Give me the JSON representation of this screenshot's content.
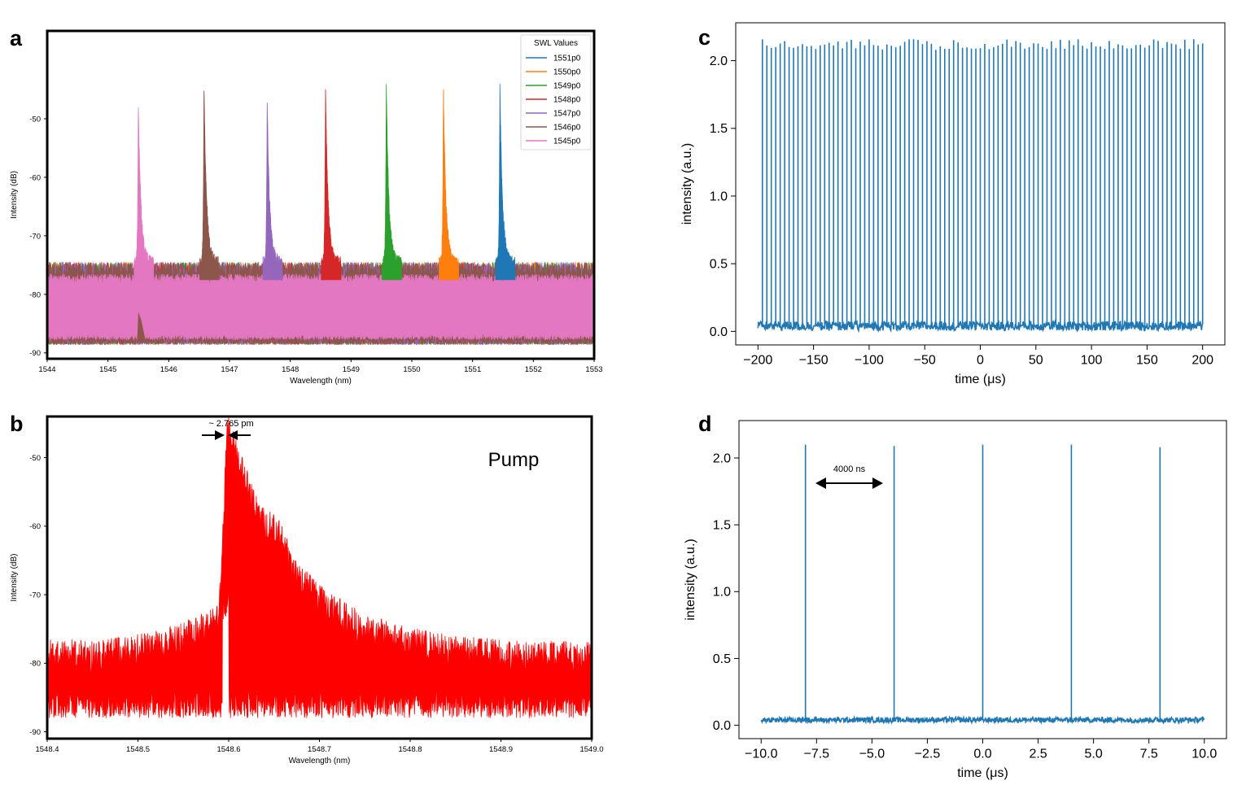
{
  "chart_data": [
    {
      "panel": "a",
      "type": "line",
      "title": "",
      "xlabel": "Wavelength (nm)",
      "ylabel": "Intensity (dB)",
      "xlim": [
        1544,
        1553
      ],
      "ylim": [
        -91,
        -35
      ],
      "xticks": [
        1544,
        1545,
        1546,
        1547,
        1548,
        1549,
        1550,
        1551,
        1552,
        1553
      ],
      "yticks": [
        -50,
        -60,
        -70,
        -80,
        -90
      ],
      "legend": {
        "title": "SWL Values",
        "placement": "top-right",
        "entries": [
          "1551p0",
          "1550p0",
          "1549p0",
          "1548p0",
          "1547p0",
          "1546p0",
          "1545p0"
        ]
      },
      "series": [
        {
          "name": "1551p0",
          "color": "#1f77b4",
          "peak_x": 1551.45,
          "peak_y": -45.5
        },
        {
          "name": "1550p0",
          "color": "#ff7f0e",
          "peak_x": 1550.52,
          "peak_y": -46.0
        },
        {
          "name": "1549p0",
          "color": "#2ca02c",
          "peak_x": 1549.58,
          "peak_y": -45.0
        },
        {
          "name": "1548p0",
          "color": "#d62728",
          "peak_x": 1548.58,
          "peak_y": -45.5
        },
        {
          "name": "1547p0",
          "color": "#9467bd",
          "peak_x": 1547.62,
          "peak_y": -48.5
        },
        {
          "name": "1546p0",
          "color": "#8c564b",
          "peak_x": 1546.58,
          "peak_y": -45.5
        },
        {
          "name": "1545p0",
          "color": "#e377c2",
          "peak_x": 1545.5,
          "peak_y": -48.5
        }
      ],
      "noise_floor": {
        "upper": -76,
        "lower": -88
      }
    },
    {
      "panel": "b",
      "type": "line",
      "title": "",
      "xlabel": "Wavelength (nm)",
      "ylabel": "Intensity (dB)",
      "xlim": [
        1548.4,
        1549.0
      ],
      "ylim": [
        -91,
        -44
      ],
      "xticks": [
        "1548.4",
        "1548.5",
        "1548.6",
        "1548.7",
        "1548.8",
        "1548.9",
        "1549.0"
      ],
      "yticks": [
        -50,
        -60,
        -70,
        -80,
        -90
      ],
      "series": [
        {
          "name": "Pump",
          "color": "#ff0000",
          "peak_x": 1548.598,
          "peak_y": -45.5
        }
      ],
      "annotations": {
        "label": "Pump",
        "linewidth": "~ 2.765 pm"
      }
    },
    {
      "panel": "c",
      "type": "line",
      "title": "",
      "xlabel": "time (μs)",
      "ylabel": "intensity (a.u.)",
      "xlim": [
        -220,
        220
      ],
      "ylim": [
        -0.1,
        2.28
      ],
      "xticks": [
        "−200",
        "−150",
        "−100",
        "−50",
        "0",
        "50",
        "100",
        "150",
        "200"
      ],
      "yticks": [
        "0.0",
        "0.5",
        "1.0",
        "1.5",
        "2.0"
      ],
      "series": [
        {
          "name": "pulse train",
          "color": "#1f77b4",
          "period_us": 4,
          "peak": 2.13,
          "baseline": 0.04,
          "start_us": -200,
          "end_us": 200
        }
      ]
    },
    {
      "panel": "d",
      "type": "line",
      "title": "",
      "xlabel": "time (μs)",
      "ylabel": "intensity (a.u.)",
      "xlim": [
        -11,
        11
      ],
      "ylim": [
        -0.1,
        2.28
      ],
      "xticks": [
        "−10.0",
        "−7.5",
        "−5.0",
        "−2.5",
        "0.0",
        "2.5",
        "5.0",
        "7.5",
        "10.0"
      ],
      "yticks": [
        "0.0",
        "0.5",
        "1.0",
        "1.5",
        "2.0"
      ],
      "series": [
        {
          "name": "pulses",
          "color": "#1f77b4",
          "pulse_times_us": [
            -8,
            -4,
            0,
            4,
            8
          ],
          "pulse_peaks": [
            2.1,
            2.09,
            2.1,
            2.1,
            2.08
          ],
          "baseline": 0.04
        }
      ],
      "annotations": {
        "period_label": "4000 ns"
      }
    }
  ]
}
